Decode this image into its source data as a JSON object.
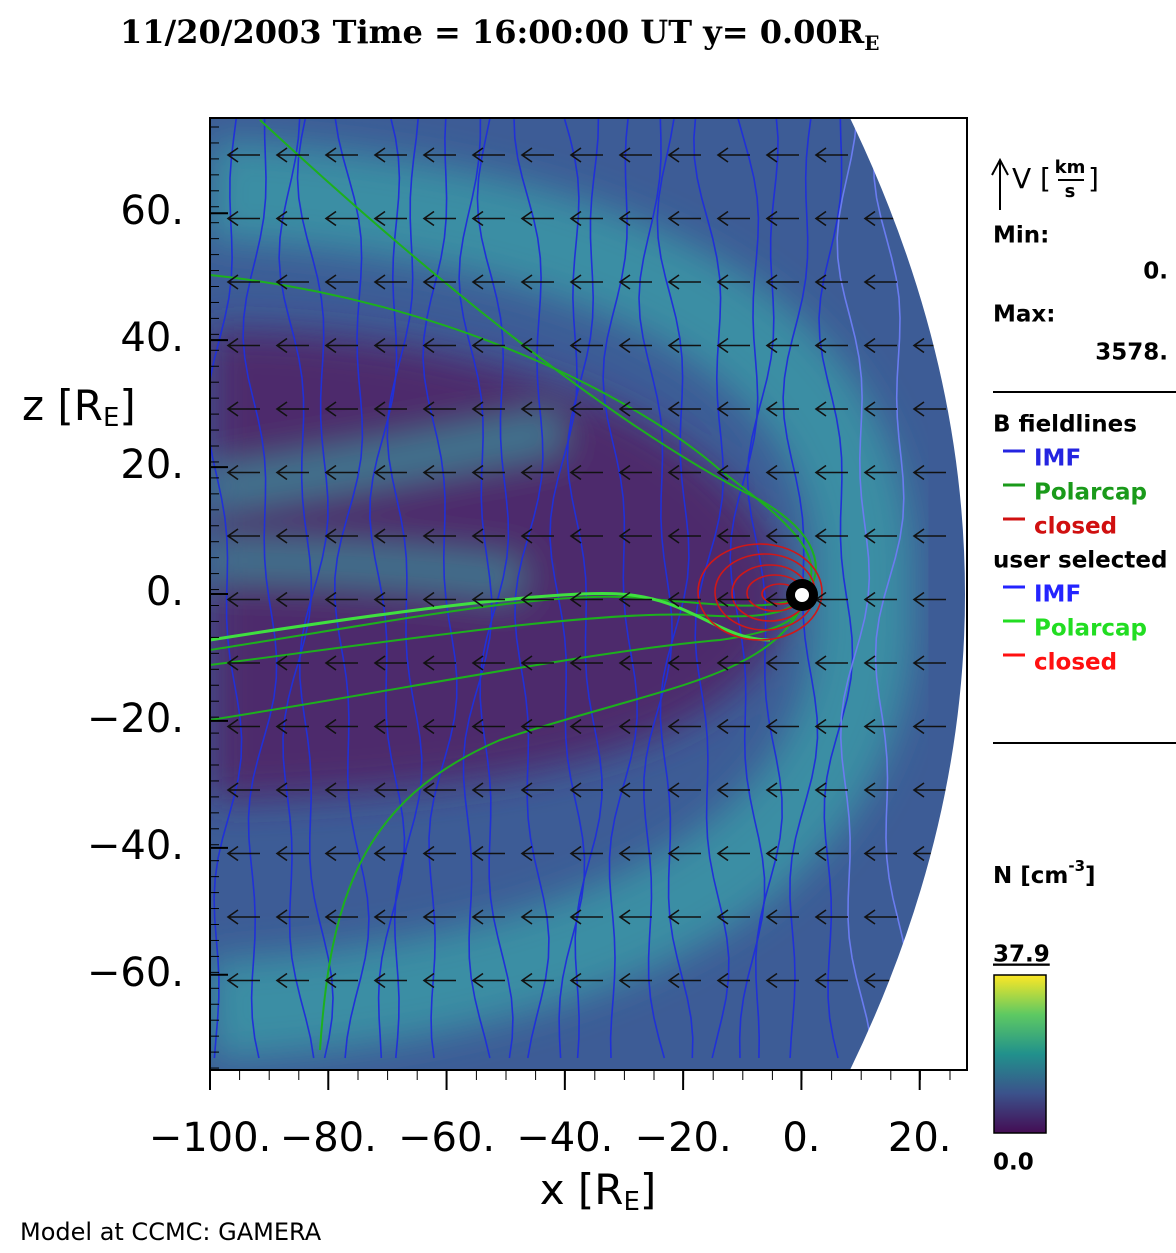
{
  "chart_data": {
    "type": "heatmap",
    "title": "11/20/2003 Time = 16:00:00 UT y= 0.00R",
    "title_subscript": "E",
    "x_label": "x [R",
    "x_label_subscript": "E",
    "x_label_end": "]",
    "y_label": "z [R",
    "y_label_subscript": "E",
    "y_label_end": "]",
    "xlim": [
      -100,
      28
    ],
    "ylim": [
      -75,
      75
    ],
    "xticks": [
      {
        "value": -100,
        "label": "−100."
      },
      {
        "value": -80,
        "label": "−80."
      },
      {
        "value": -60,
        "label": "−60."
      },
      {
        "value": -40,
        "label": "−40."
      },
      {
        "value": -20,
        "label": "−20."
      },
      {
        "value": 0,
        "label": "0."
      },
      {
        "value": 20,
        "label": "20."
      }
    ],
    "yticks": [
      {
        "value": 60,
        "label": "60."
      },
      {
        "value": 40,
        "label": "40."
      },
      {
        "value": 20,
        "label": "20."
      },
      {
        "value": 0,
        "label": "0."
      },
      {
        "value": -20,
        "label": "−20."
      },
      {
        "value": -40,
        "label": "−40."
      },
      {
        "value": -60,
        "label": "−60."
      }
    ],
    "vector_legend": {
      "symbol": "V [",
      "numerator": "km",
      "denominator": "s",
      "end": "]",
      "min_label": "Min:",
      "min": {
        "value": 0,
        "label": "0."
      },
      "max_label": "Max:",
      "max": {
        "value": 3578,
        "label": "3578."
      }
    },
    "fieldlines": {
      "title": "B fieldlines",
      "entries": [
        {
          "name": "IMF",
          "color": "#2424e0"
        },
        {
          "name": "Polarcap",
          "color": "#1a9a1a"
        },
        {
          "name": "closed",
          "color": "#d01010"
        }
      ]
    },
    "user_selected": {
      "title": "user selected",
      "entries": [
        {
          "name": "IMF",
          "color": "#2424ff"
        },
        {
          "name": "Polarcap",
          "color": "#22dd22"
        },
        {
          "name": "closed",
          "color": "#ff1010"
        }
      ]
    },
    "colorbar": {
      "label": "N [cm",
      "label_superscript": "-3",
      "label_end": "]",
      "lim": [
        {
          "value": 0,
          "label": "0.0"
        },
        {
          "value": 37.9,
          "label": "37.9"
        }
      ]
    },
    "footer": "Model at CCMC: GAMERA"
  }
}
